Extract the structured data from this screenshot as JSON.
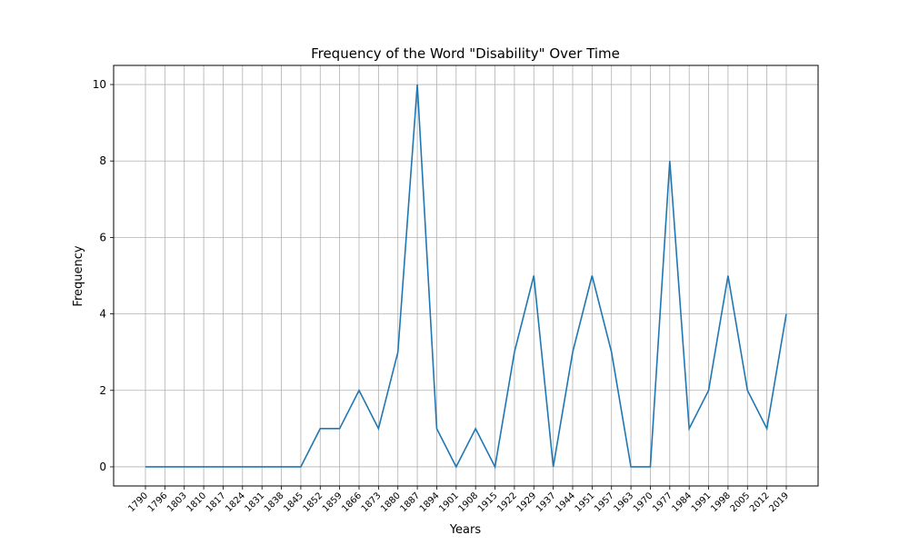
{
  "chart_data": {
    "type": "line",
    "title": "Frequency of the Word \"Disability\" Over Time",
    "xlabel": "Years",
    "ylabel": "Frequency",
    "ylim": [
      -0.5,
      10.5
    ],
    "yticks": [
      0,
      2,
      4,
      6,
      8,
      10
    ],
    "grid": true,
    "categories": [
      "1790",
      "1796",
      "1803",
      "1810",
      "1817",
      "1824",
      "1831",
      "1838",
      "1845",
      "1852",
      "1859",
      "1866",
      "1873",
      "1880",
      "1887",
      "1894",
      "1901",
      "1908",
      "1915",
      "1922",
      "1929",
      "1937",
      "1944",
      "1951",
      "1957",
      "1963",
      "1970",
      "1977",
      "1984",
      "1991",
      "1998",
      "2005",
      "2012",
      "2019"
    ],
    "series": [
      {
        "values": [
          0,
          0,
          0,
          0,
          0,
          0,
          0,
          0,
          0,
          1,
          1,
          2,
          1,
          3,
          10,
          1,
          0,
          1,
          0,
          3,
          5,
          0,
          3,
          5,
          3,
          0,
          0,
          8,
          1,
          2,
          5,
          2,
          1,
          4
        ]
      }
    ],
    "colors": {
      "line": "#1f77b4",
      "grid": "#b0b0b0"
    }
  }
}
